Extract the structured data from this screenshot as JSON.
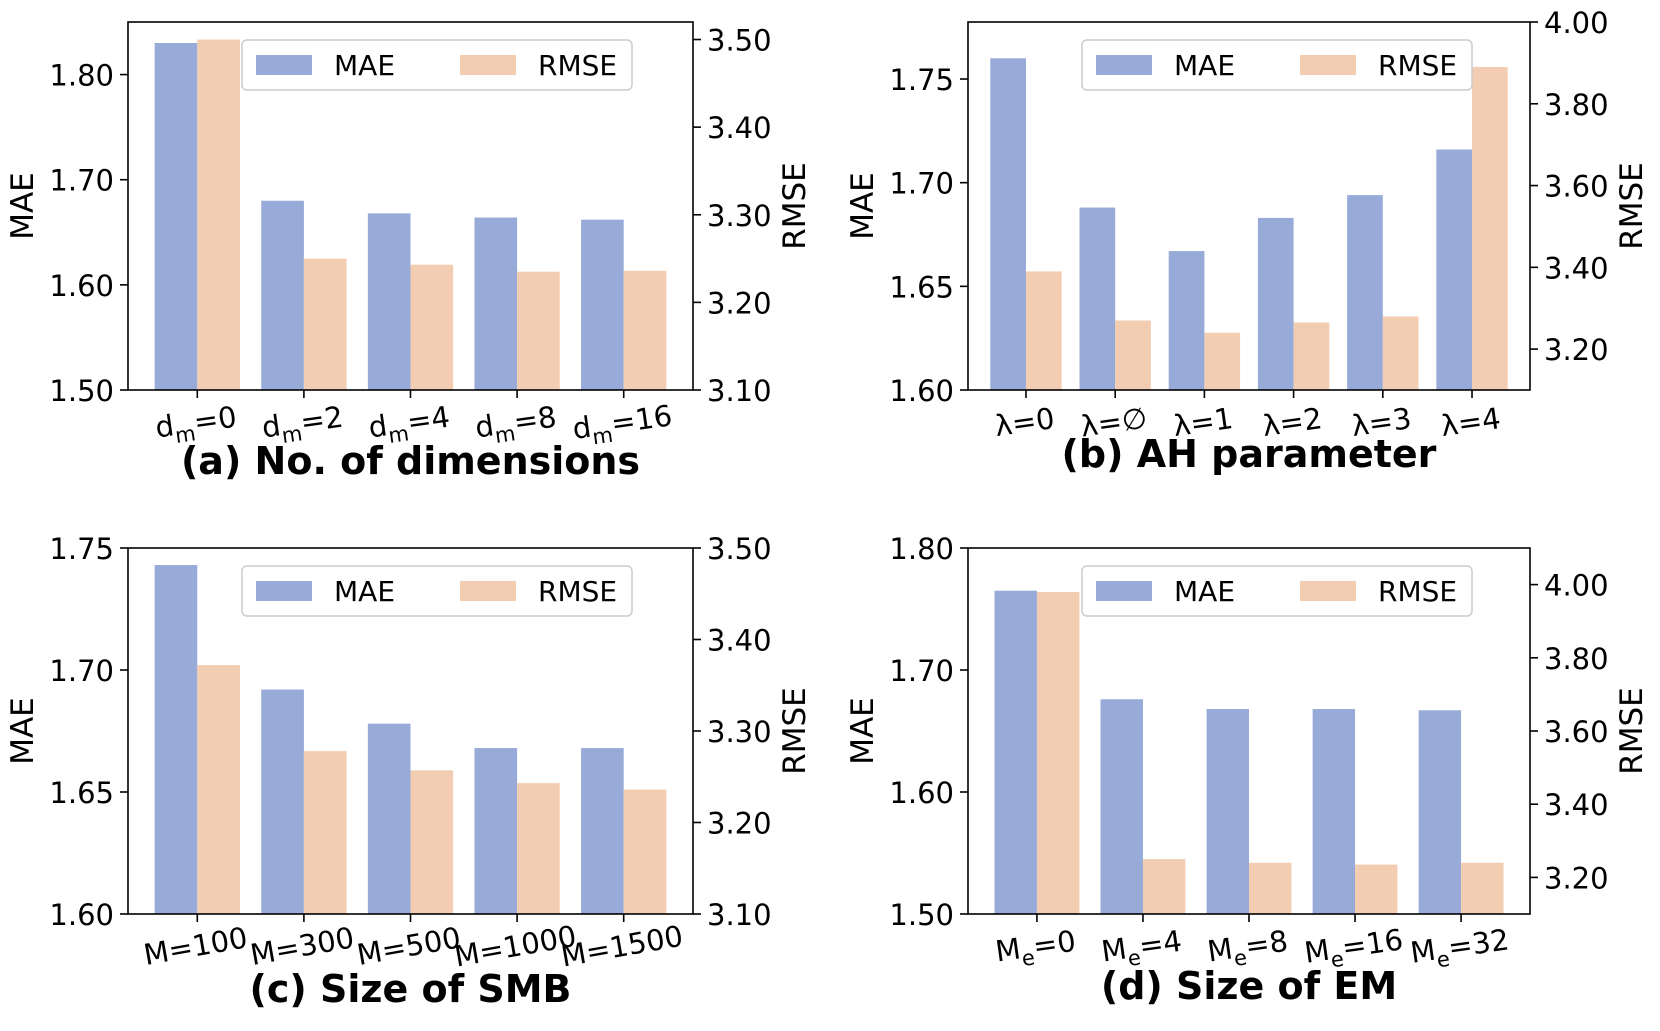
{
  "colors": {
    "mae": "#97aad8",
    "rmse": "#f2cdb1",
    "axis": "#000000",
    "legend_border": "#cccccc"
  },
  "chart_data": [
    {
      "type": "bar",
      "caption": "(a) No. of dimensions",
      "categories": [
        {
          "base": "d",
          "sub": "m",
          "rest": "=0"
        },
        {
          "base": "d",
          "sub": "m",
          "rest": "=2"
        },
        {
          "base": "d",
          "sub": "m",
          "rest": "=4"
        },
        {
          "base": "d",
          "sub": "m",
          "rest": "=8"
        },
        {
          "base": "d",
          "sub": "m",
          "rest": "=16"
        }
      ],
      "ylabel": "MAE",
      "y2label": "RMSE",
      "ylim": [
        1.5,
        1.85
      ],
      "yticks": [
        "1.50",
        "1.60",
        "1.70",
        "1.80"
      ],
      "y2lim": [
        3.1,
        3.52
      ],
      "y2ticks": [
        "3.10",
        "3.20",
        "3.30",
        "3.40",
        "3.50"
      ],
      "series": [
        {
          "name": "MAE",
          "axis": "left",
          "values": [
            1.83,
            1.68,
            1.668,
            1.664,
            1.662
          ]
        },
        {
          "name": "RMSE",
          "axis": "right",
          "values": [
            3.5,
            3.25,
            3.243,
            3.235,
            3.236
          ]
        }
      ],
      "legend": [
        "MAE",
        "RMSE"
      ]
    },
    {
      "type": "bar",
      "caption": "(b) AH parameter",
      "categories": [
        {
          "base": "λ=0"
        },
        {
          "base": "λ=∅"
        },
        {
          "base": "λ=1"
        },
        {
          "base": "λ=2"
        },
        {
          "base": "λ=3"
        },
        {
          "base": "λ=4"
        }
      ],
      "ylabel": "MAE",
      "y2label": "RMSE",
      "ylim": [
        1.6,
        1.7775
      ],
      "yticks": [
        "1.60",
        "1.65",
        "1.70",
        "1.75"
      ],
      "y2lim": [
        3.1,
        4.0
      ],
      "y2ticks": [
        "3.20",
        "3.40",
        "3.60",
        "3.80",
        "4.00"
      ],
      "series": [
        {
          "name": "MAE",
          "axis": "left",
          "values": [
            1.76,
            1.688,
            1.667,
            1.683,
            1.694,
            1.716
          ]
        },
        {
          "name": "RMSE",
          "axis": "right",
          "values": [
            3.39,
            3.27,
            3.24,
            3.265,
            3.28,
            3.89
          ]
        }
      ],
      "legend": [
        "MAE",
        "RMSE"
      ]
    },
    {
      "type": "bar",
      "caption": "(c) Size of SMB",
      "categories": [
        {
          "base": "M=100"
        },
        {
          "base": "M=300"
        },
        {
          "base": "M=500"
        },
        {
          "base": "M=1000"
        },
        {
          "base": "M=1500"
        }
      ],
      "ylabel": "MAE",
      "y2label": "RMSE",
      "ylim": [
        1.6,
        1.75
      ],
      "yticks": [
        "1.60",
        "1.65",
        "1.70",
        "1.75"
      ],
      "y2lim": [
        3.1,
        3.5
      ],
      "y2ticks": [
        "3.10",
        "3.20",
        "3.30",
        "3.40",
        "3.50"
      ],
      "series": [
        {
          "name": "MAE",
          "axis": "left",
          "values": [
            1.743,
            1.692,
            1.678,
            1.668,
            1.668
          ]
        },
        {
          "name": "RMSE",
          "axis": "right",
          "values": [
            3.372,
            3.278,
            3.257,
            3.243,
            3.236
          ]
        }
      ],
      "legend": [
        "MAE",
        "RMSE"
      ]
    },
    {
      "type": "bar",
      "caption": "(d) Size of EM",
      "categories": [
        {
          "base": "M",
          "sub": "e",
          "rest": "=0"
        },
        {
          "base": "M",
          "sub": "e",
          "rest": "=4"
        },
        {
          "base": "M",
          "sub": "e",
          "rest": "=8"
        },
        {
          "base": "M",
          "sub": "e",
          "rest": "=16"
        },
        {
          "base": "M",
          "sub": "e",
          "rest": "=32"
        }
      ],
      "ylabel": "MAE",
      "y2label": "RMSE",
      "ylim": [
        1.5,
        1.8
      ],
      "yticks": [
        "1.50",
        "1.60",
        "1.70",
        "1.80"
      ],
      "y2lim": [
        3.1,
        4.1
      ],
      "y2ticks": [
        "3.20",
        "3.40",
        "3.60",
        "3.80",
        "4.00"
      ],
      "series": [
        {
          "name": "MAE",
          "axis": "left",
          "values": [
            1.765,
            1.676,
            1.668,
            1.668,
            1.667
          ]
        },
        {
          "name": "RMSE",
          "axis": "right",
          "values": [
            3.98,
            3.25,
            3.24,
            3.235,
            3.24
          ]
        }
      ],
      "legend": [
        "MAE",
        "RMSE"
      ]
    }
  ]
}
